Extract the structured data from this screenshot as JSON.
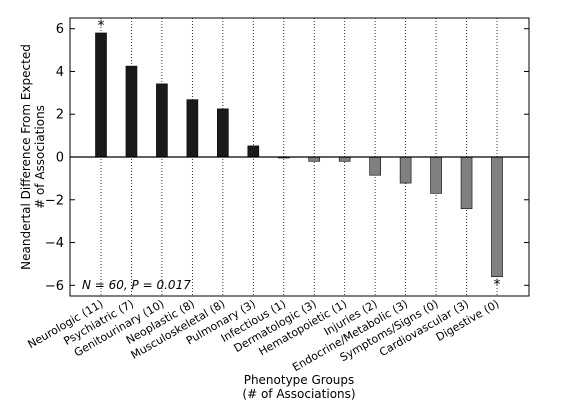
{
  "chart_data": {
    "type": "bar",
    "xlabel": "Phenotype Groups\n(# of Associations)",
    "ylabel": "Neandertal Difference From Expected\n# of Associations",
    "ylim": [
      -6.5,
      6.5
    ],
    "yticks": [
      6,
      4,
      2,
      0,
      -2,
      -4,
      -6
    ],
    "grid": "vertical dotted lines at each category",
    "annotation": "N = 60, P = 0.017",
    "categories": [
      "Neurologic (11)",
      "Psychiatric (7)",
      "Genitourinary (10)",
      "Neoplastic (8)",
      "Musculoskeletal (8)",
      "Pulmonary (3)",
      "Infectious (1)",
      "Dermatologic (3)",
      "Hematopoietic (1)",
      "Injuries (2)",
      "Endocrine/Metabolic (3)",
      "Symptoms/Signs (0)",
      "Cardiovascular (3)",
      "Digestive (0)"
    ],
    "values": [
      5.8,
      4.25,
      3.42,
      2.68,
      2.25,
      0.52,
      -0.02,
      -0.2,
      -0.2,
      -0.85,
      -1.22,
      -1.7,
      -2.42,
      -5.6
    ],
    "significant": [
      "Neurologic (11)",
      "Digestive (0)"
    ],
    "significance_marker": "*",
    "colors": {
      "positive": "#1a1a1a",
      "negative": "#808080",
      "zero_line": "#000000",
      "grid": "#000000"
    }
  }
}
